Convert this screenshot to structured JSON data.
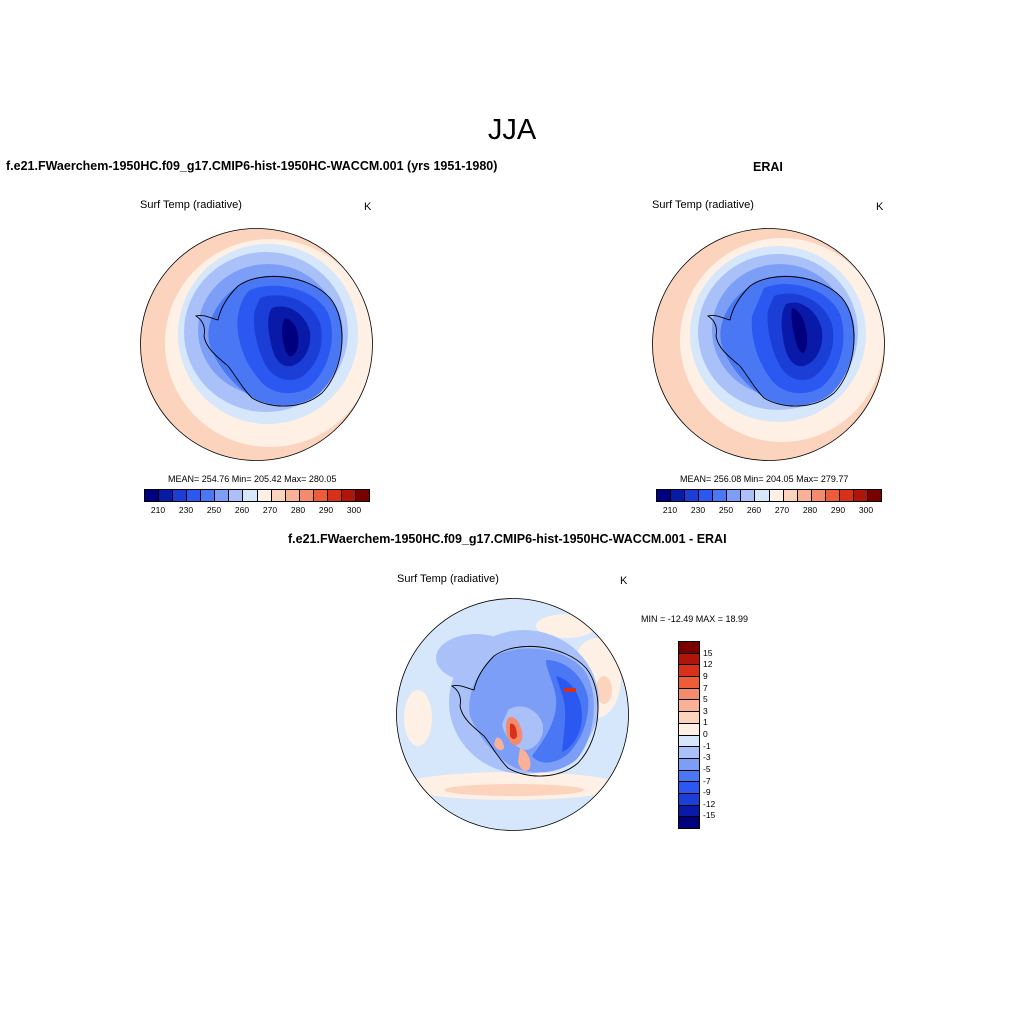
{
  "title": "JJA",
  "panels": [
    {
      "id": "model",
      "title": "f.e21.FWaerchem-1950HC.f09_g17.CMIP6-hist-1950HC-WACCM.001 (yrs 1951-1980)",
      "field": "Surf Temp (radiative)",
      "units": "K",
      "stats": "MEAN= 254.76  Min= 205.42  Max= 280.05"
    },
    {
      "id": "obs",
      "title": "ERAI",
      "field": "Surf Temp (radiative)",
      "units": "K",
      "stats": "MEAN= 256.08  Min= 204.05  Max= 279.77"
    },
    {
      "id": "diff",
      "title": "f.e21.FWaerchem-1950HC.f09_g17.CMIP6-hist-1950HC-WACCM.001 - ERAI",
      "field": "Surf Temp (radiative)",
      "units": "K",
      "stats": "MIN = -12.49 MAX =  18.99"
    }
  ],
  "colorbar_abs": {
    "ticks": [
      "210",
      "230",
      "250",
      "260",
      "270",
      "280",
      "290",
      "300"
    ],
    "colors": [
      "#00007f",
      "#0a1aa8",
      "#1b3fd6",
      "#2b58f0",
      "#4a78f5",
      "#7d9ef6",
      "#a9c1f8",
      "#d6e6fb",
      "#fff0e6",
      "#fcd3bd",
      "#f9b198",
      "#f58b6d",
      "#ee5d3a",
      "#d9301a",
      "#b0150a",
      "#7a0000"
    ]
  },
  "colorbar_diff": {
    "ticks": [
      "15",
      "12",
      "9",
      "7",
      "5",
      "3",
      "1",
      "0",
      "-1",
      "-3",
      "-5",
      "-7",
      "-9",
      "-12",
      "-15"
    ],
    "colors": [
      "#7a0000",
      "#b0150a",
      "#d9301a",
      "#ee5d3a",
      "#f58b6d",
      "#f9b198",
      "#fcd3bd",
      "#fff0e6",
      "#d6e6fb",
      "#a9c1f8",
      "#7d9ef6",
      "#4a78f5",
      "#2b58f0",
      "#1b3fd6",
      "#0a1aa8",
      "#00007f"
    ]
  }
}
